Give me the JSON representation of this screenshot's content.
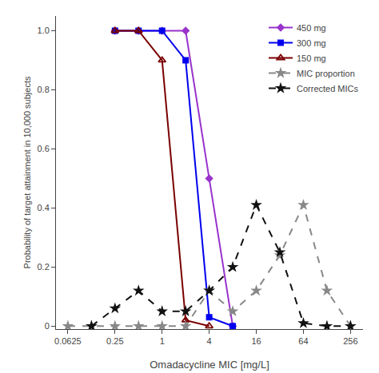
{
  "chart_data": {
    "type": "line",
    "xlabel": "Omadacycline MIC [mg/L]",
    "ylabel": "Probability of target attainment in 10,000 subjects",
    "log": "x",
    "grid": false,
    "legend": "upper right",
    "xlim": [
      0.044,
      370
    ],
    "xticks": [
      0.0625,
      0.25,
      1,
      4,
      16,
      64,
      256
    ],
    "ylim": [
      -0.01,
      1.05
    ],
    "yticks": [
      0,
      0.2,
      0.4,
      0.6,
      0.8,
      {
        "value": 1,
        "label": "1.0"
      }
    ],
    "series": [
      {
        "name": "450 mg",
        "color": "#9933cc",
        "marker": "diamond",
        "line_style": "solid",
        "x": [
          0.25,
          0.5,
          1,
          2,
          4,
          8
        ],
        "values": [
          1.0,
          1.0,
          1.0,
          1.0,
          0.5,
          0.0
        ]
      },
      {
        "name": "300 mg",
        "color": "#0000ee",
        "marker": "square",
        "line_style": "solid",
        "x": [
          0.25,
          0.5,
          1,
          2,
          4,
          8
        ],
        "values": [
          1.0,
          1.0,
          1.0,
          0.9,
          0.03,
          0.0
        ]
      },
      {
        "name": "150 mg",
        "color": "#7a0000",
        "marker": "triangle-up-open",
        "line_style": "solid",
        "x": [
          0.25,
          0.5,
          1,
          2,
          4
        ],
        "values": [
          1.0,
          1.0,
          0.9,
          0.02,
          0.0
        ]
      },
      {
        "name": "MIC proportion",
        "color": "#888888",
        "marker": "star",
        "line_style": "dash",
        "x": [
          0.0625,
          0.125,
          0.25,
          0.5,
          1,
          2,
          4,
          8,
          16,
          32,
          64,
          128,
          256
        ],
        "values": [
          0.0,
          0.0,
          0.0,
          0.0,
          0.0,
          0.0,
          0.12,
          0.05,
          0.12,
          0.24,
          0.41,
          0.12,
          0.0
        ]
      },
      {
        "name": "Corrected MICs",
        "color": "#111111",
        "marker": "star",
        "line_style": "dash",
        "x": [
          0.125,
          0.25,
          0.5,
          1,
          2,
          4,
          8,
          16,
          32,
          64,
          128,
          256
        ],
        "values": [
          0.0,
          0.06,
          0.12,
          0.05,
          0.05,
          0.12,
          0.2,
          0.41,
          0.25,
          0.01,
          0.0,
          0.0
        ]
      }
    ]
  }
}
